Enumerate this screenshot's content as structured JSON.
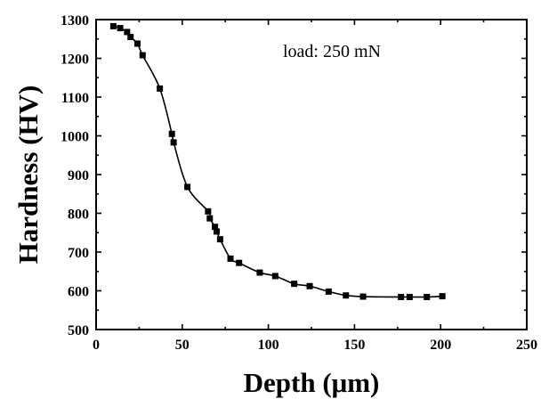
{
  "chart_data": {
    "type": "scatter",
    "title": "",
    "xlabel": "Depth (μm)",
    "ylabel": "Hardness (HV)",
    "xlim": [
      0,
      250
    ],
    "ylim": [
      500,
      1300
    ],
    "x_ticks": [
      "0",
      "50",
      "100",
      "150",
      "200",
      "250"
    ],
    "y_ticks": [
      "500",
      "600",
      "700",
      "800",
      "900",
      "1000",
      "1100",
      "1200",
      "1300"
    ],
    "annotation": "load: 250 mN",
    "grid": false,
    "series": [
      {
        "marker": "square",
        "color": "#000000",
        "fit_line": true,
        "x": [
          10,
          14,
          18,
          20,
          24,
          27,
          37,
          44,
          45,
          53,
          65,
          66,
          69,
          70,
          72,
          78,
          83,
          95,
          104,
          115,
          124,
          135,
          145,
          155,
          177,
          182,
          192,
          201
        ],
        "y": [
          1283,
          1278,
          1268,
          1255,
          1238,
          1208,
          1122,
          1005,
          983,
          868,
          805,
          787,
          765,
          753,
          733,
          683,
          672,
          647,
          638,
          618,
          612,
          598,
          588,
          585,
          584,
          584,
          584,
          586
        ]
      }
    ]
  }
}
